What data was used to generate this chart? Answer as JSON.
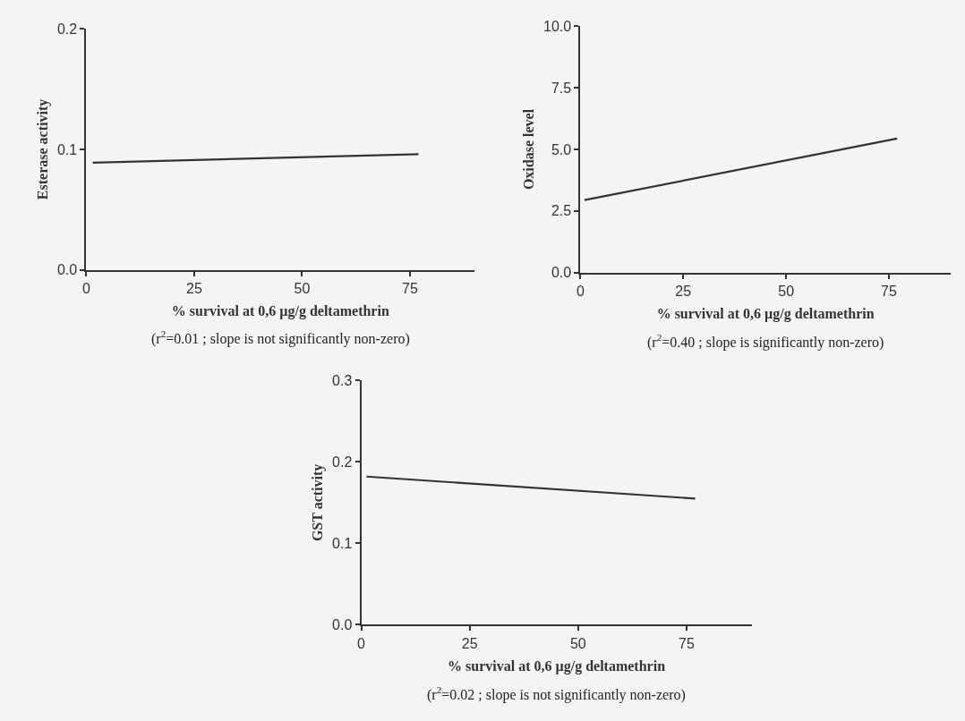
{
  "chart_data": [
    {
      "type": "line",
      "xlabel": "% survival at 0,6 µg/g deltamethrin",
      "ylabel": "Esterase activity",
      "annotations": [
        "(r$^{2}$=0.01 ; slope is not significantly non-zero)"
      ],
      "series": [
        {
          "color": "#333333",
          "x": [
            1.5,
            77
          ],
          "values": [
            0.089,
            0.096
          ]
        }
      ],
      "xlim": [
        0,
        90
      ],
      "ylim": [
        0,
        0.2
      ],
      "xticks": [
        0,
        25,
        50,
        75
      ],
      "yticks": [
        {
          "value": 0,
          "label": "0.0"
        },
        {
          "value": 0.1,
          "label": "0.1"
        },
        {
          "value": 0.2,
          "label": "0.2"
        }
      ],
      "grid": false,
      "marker": "none"
    },
    {
      "type": "line",
      "xlabel": "% survival at 0,6 µg/g deltamethrin",
      "ylabel": "Oxidase level",
      "annotations": [
        "(r$^{2}$=0.40 ; slope is significantly non-zero)"
      ],
      "series": [
        {
          "color": "#333333",
          "x": [
            1,
            77
          ],
          "values": [
            2.94,
            5.44
          ]
        }
      ],
      "xlim": [
        0,
        90
      ],
      "ylim": [
        0,
        10
      ],
      "xticks": [
        0,
        25,
        50,
        75
      ],
      "yticks": [
        {
          "value": 0,
          "label": "0.0"
        },
        2.5,
        {
          "value": 5,
          "label": "5.0"
        },
        7.5,
        {
          "value": 10,
          "label": "10.0"
        }
      ],
      "grid": false,
      "marker": "none"
    },
    {
      "type": "line",
      "xlabel": "% survival at 0,6 µg/g deltamethrin",
      "ylabel": "GST activity",
      "annotations": [
        "(r$^{2}$=0.02 ; slope is not significantly non-zero)"
      ],
      "series": [
        {
          "color": "#333333",
          "x": [
            1.2,
            77
          ],
          "values": [
            0.182,
            0.155
          ]
        }
      ],
      "xlim": [
        0,
        90
      ],
      "ylim": [
        0,
        0.3
      ],
      "xticks": [
        0,
        25,
        50,
        75
      ],
      "yticks": [
        {
          "value": 0,
          "label": "0.0"
        },
        {
          "value": 0.1,
          "label": "0.1"
        },
        {
          "value": 0.2,
          "label": "0.2"
        },
        {
          "value": 0.3,
          "label": "0.3"
        }
      ],
      "grid": false,
      "marker": "none"
    }
  ]
}
